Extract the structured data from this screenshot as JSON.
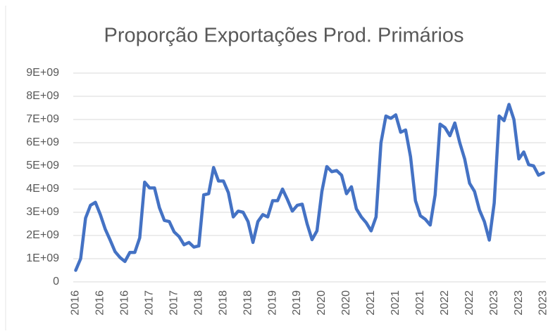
{
  "chart_data": {
    "type": "line",
    "title": "Proporção Exportações Prod. Primários",
    "categories": [
      "2016",
      null,
      null,
      null,
      null,
      "2016",
      null,
      null,
      null,
      null,
      "2016",
      null,
      null,
      null,
      null,
      "2017",
      null,
      null,
      null,
      null,
      "2017",
      null,
      null,
      null,
      null,
      "2018",
      null,
      null,
      null,
      null,
      "2018",
      null,
      null,
      null,
      null,
      "2018",
      null,
      null,
      null,
      null,
      "2019",
      null,
      null,
      null,
      null,
      "2019",
      null,
      null,
      null,
      null,
      "2020",
      null,
      null,
      null,
      null,
      "2020",
      null,
      null,
      null,
      null,
      "2021",
      null,
      null,
      null,
      null,
      "2021",
      null,
      null,
      null,
      null,
      "2021",
      null,
      null,
      null,
      null,
      "2022",
      null,
      null,
      null,
      null,
      "2022",
      null,
      null,
      null,
      null,
      "2023",
      null,
      null,
      null,
      null,
      "2023",
      null,
      null,
      null,
      null,
      "2023"
    ],
    "series": [
      {
        "color": "#4472c4",
        "values": [
          500000000,
          1000000000,
          2750000000,
          3300000000,
          3430000000,
          2900000000,
          2270000000,
          1800000000,
          1300000000,
          1050000000,
          880000000,
          1270000000,
          1270000000,
          1900000000,
          4300000000,
          4050000000,
          4050000000,
          3200000000,
          2650000000,
          2600000000,
          2150000000,
          1950000000,
          1600000000,
          1700000000,
          1500000000,
          1550000000,
          3750000000,
          3800000000,
          4930000000,
          4350000000,
          4350000000,
          3850000000,
          2800000000,
          3050000000,
          3000000000,
          2600000000,
          1700000000,
          2600000000,
          2900000000,
          2800000000,
          3500000000,
          3500000000,
          4000000000,
          3550000000,
          3050000000,
          3300000000,
          3350000000,
          2500000000,
          1820000000,
          2200000000,
          3900000000,
          4970000000,
          4750000000,
          4800000000,
          4600000000,
          3800000000,
          4100000000,
          3150000000,
          2800000000,
          2550000000,
          2200000000,
          2800000000,
          6000000000,
          7150000000,
          7050000000,
          7200000000,
          6450000000,
          6550000000,
          5400000000,
          3500000000,
          2850000000,
          2700000000,
          2450000000,
          3750000000,
          6800000000,
          6650000000,
          6300000000,
          6850000000,
          6000000000,
          5300000000,
          4250000000,
          3900000000,
          3100000000,
          2600000000,
          1800000000,
          3400000000,
          7150000000,
          6950000000,
          7650000000,
          7000000000,
          5300000000,
          5600000000,
          5050000000,
          5000000000,
          4600000000,
          4700000000
        ]
      }
    ],
    "ylim": [
      0,
      9000000000
    ],
    "yticks": [
      0,
      {
        "value": 1000000000,
        "label": "1E+09"
      },
      {
        "value": 2000000000,
        "label": "2E+09"
      },
      {
        "value": 3000000000,
        "label": "3E+09"
      },
      {
        "value": 4000000000,
        "label": "4E+09"
      },
      {
        "value": 5000000000,
        "label": "5E+09"
      },
      {
        "value": 6000000000,
        "label": "6E+09"
      },
      {
        "value": 7000000000,
        "label": "7E+09"
      },
      {
        "value": 8000000000,
        "label": "8E+09"
      },
      {
        "value": 9000000000,
        "label": "9E+09"
      }
    ],
    "grid": true
  }
}
